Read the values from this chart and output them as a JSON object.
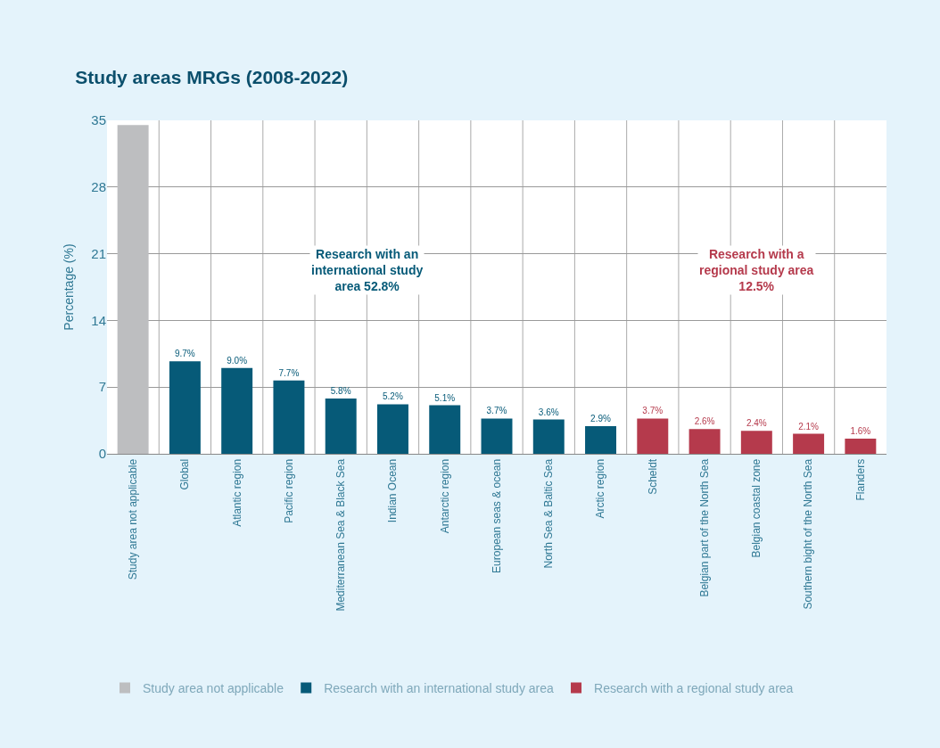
{
  "chart_data": {
    "type": "bar",
    "title": "Study areas MRGs (2008-2022)",
    "ylabel": "Percentage (%)",
    "categories": [
      "Study area not applicable",
      "Global",
      "Atlantic region",
      "Pacific region",
      "Mediterranean Sea & Black Sea",
      "Indian Ocean",
      "Antarctic region",
      "European seas & ocean",
      "North Sea & Baltic Sea",
      "Arctic region",
      "Scheldt",
      "Belgian part of the North Sea",
      "Belgian coastal zone",
      "Southern bight of the North Sea",
      "Flanders"
    ],
    "series": [
      {
        "name": "Study area not applicable",
        "color": "#bdbec0",
        "values": [
          34.5,
          null,
          null,
          null,
          null,
          null,
          null,
          null,
          null,
          null,
          null,
          null,
          null,
          null,
          null
        ]
      },
      {
        "name": "Research with an international study area",
        "color": "#065a78",
        "values": [
          null,
          9.7,
          9.0,
          7.7,
          5.8,
          5.2,
          5.1,
          3.7,
          3.6,
          2.9,
          null,
          null,
          null,
          null,
          null
        ],
        "value_labels": [
          null,
          "9.7%",
          "9.0%",
          "7.7%",
          "5.8%",
          "5.2%",
          "5.1%",
          "3.7%",
          "3.6%",
          "2.9%",
          null,
          null,
          null,
          null,
          null
        ]
      },
      {
        "name": "Research with a regional study area",
        "color": "#b53a4c",
        "values": [
          null,
          null,
          null,
          null,
          null,
          null,
          null,
          null,
          null,
          null,
          3.7,
          2.6,
          2.4,
          2.1,
          1.6
        ],
        "value_labels": [
          null,
          null,
          null,
          null,
          null,
          null,
          null,
          null,
          null,
          null,
          "3.7%",
          "2.6%",
          "2.4%",
          "2.1%",
          "1.6%"
        ]
      }
    ],
    "annotations": [
      "Research with an international study area 52.8%",
      "Research with a regional study area 12.5%"
    ],
    "ylim": [
      0,
      35
    ],
    "yticks": [
      0,
      7,
      14,
      21,
      28,
      35
    ],
    "grid": true,
    "legend": "bottom"
  }
}
